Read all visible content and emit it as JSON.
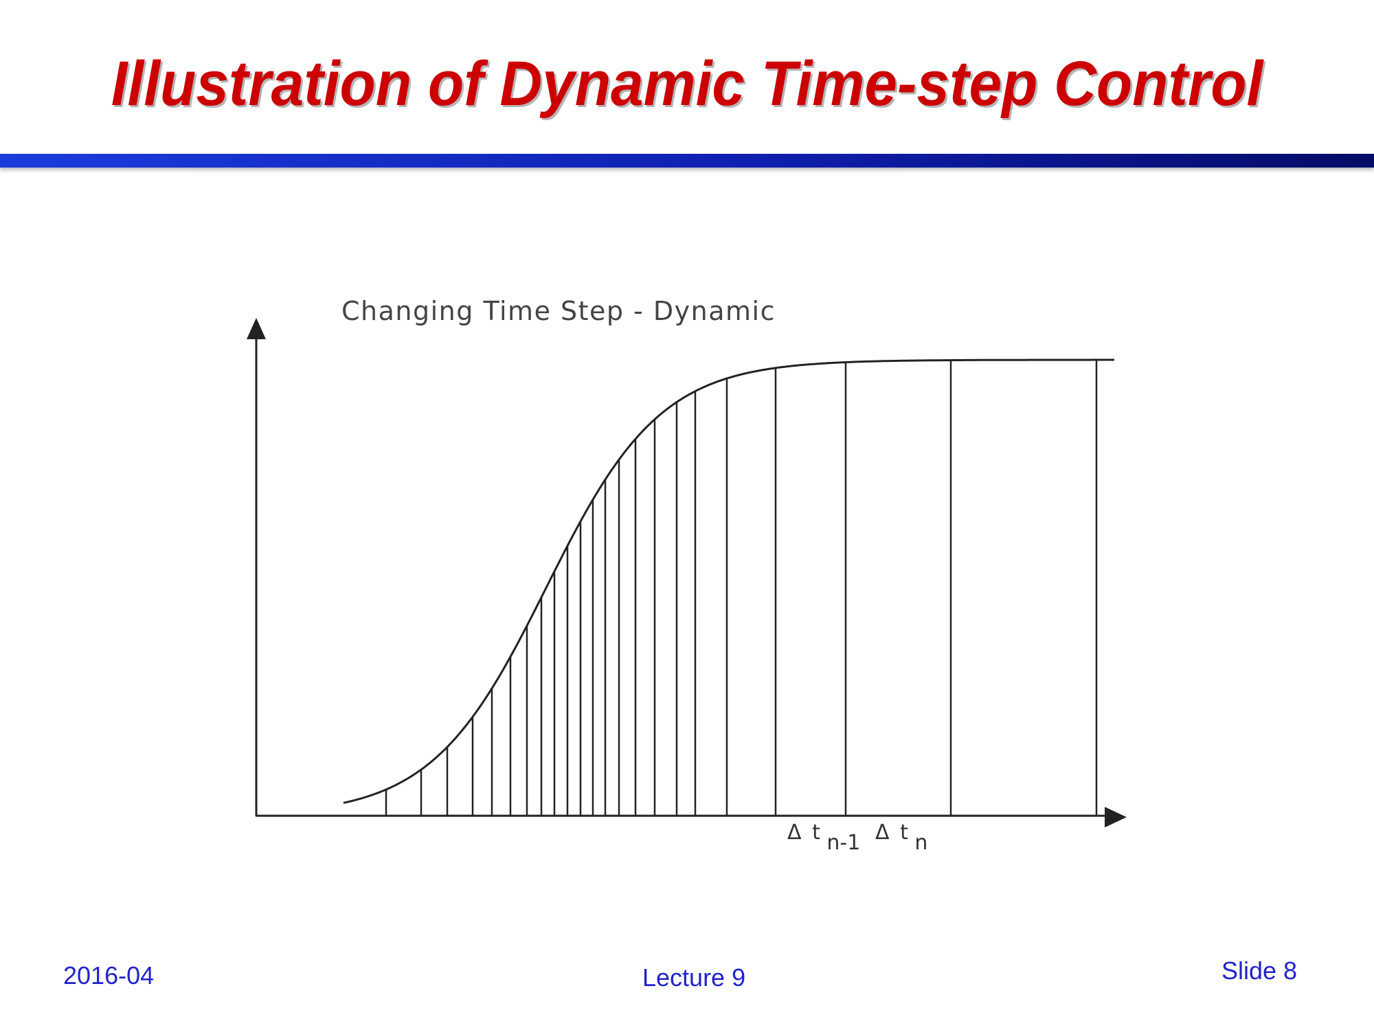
{
  "title": "Illustration of Dynamic Time-step Control",
  "diagram": {
    "label": "Changing Time Step - Dynamic",
    "delta_symbol": "Δ",
    "step_labels": [
      {
        "base": "t",
        "sub": "n-1"
      },
      {
        "base": "t",
        "sub": "n"
      }
    ]
  },
  "footer": {
    "date": "2016-04",
    "lecture": "Lecture 9",
    "slide": "Slide 8"
  },
  "colors": {
    "title": "#cc0000",
    "rule": "#0f1fb0",
    "footer": "#2222cc",
    "line": "#222222"
  }
}
